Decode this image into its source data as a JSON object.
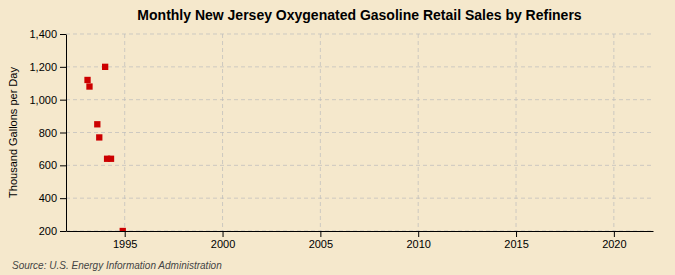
{
  "chart_data": {
    "type": "scatter",
    "title": "Monthly New Jersey Oxygenated Gasoline Retail Sales by Refiners",
    "ylabel": "Thousand Gallons per Day",
    "source": "Source: U.S. Energy Information Administration",
    "x": [
      1993.1,
      1993.2,
      1993.6,
      1993.7,
      1994.0,
      1994.1,
      1994.3,
      1994.9
    ],
    "values": [
      1120,
      1080,
      850,
      770,
      1200,
      640,
      640,
      200
    ],
    "color": "#cc0000",
    "marker": "square",
    "xlim": [
      1992,
      2022
    ],
    "ylim": [
      200,
      1400
    ],
    "xticks": [
      1995,
      2000,
      2005,
      2010,
      2015,
      2020
    ],
    "yticks": [
      200,
      400,
      600,
      800,
      {
        "value": 1000,
        "label": "1,000"
      },
      {
        "value": 1200,
        "label": "1,200"
      },
      {
        "value": 1400,
        "label": "1,400"
      }
    ],
    "grid": true
  }
}
